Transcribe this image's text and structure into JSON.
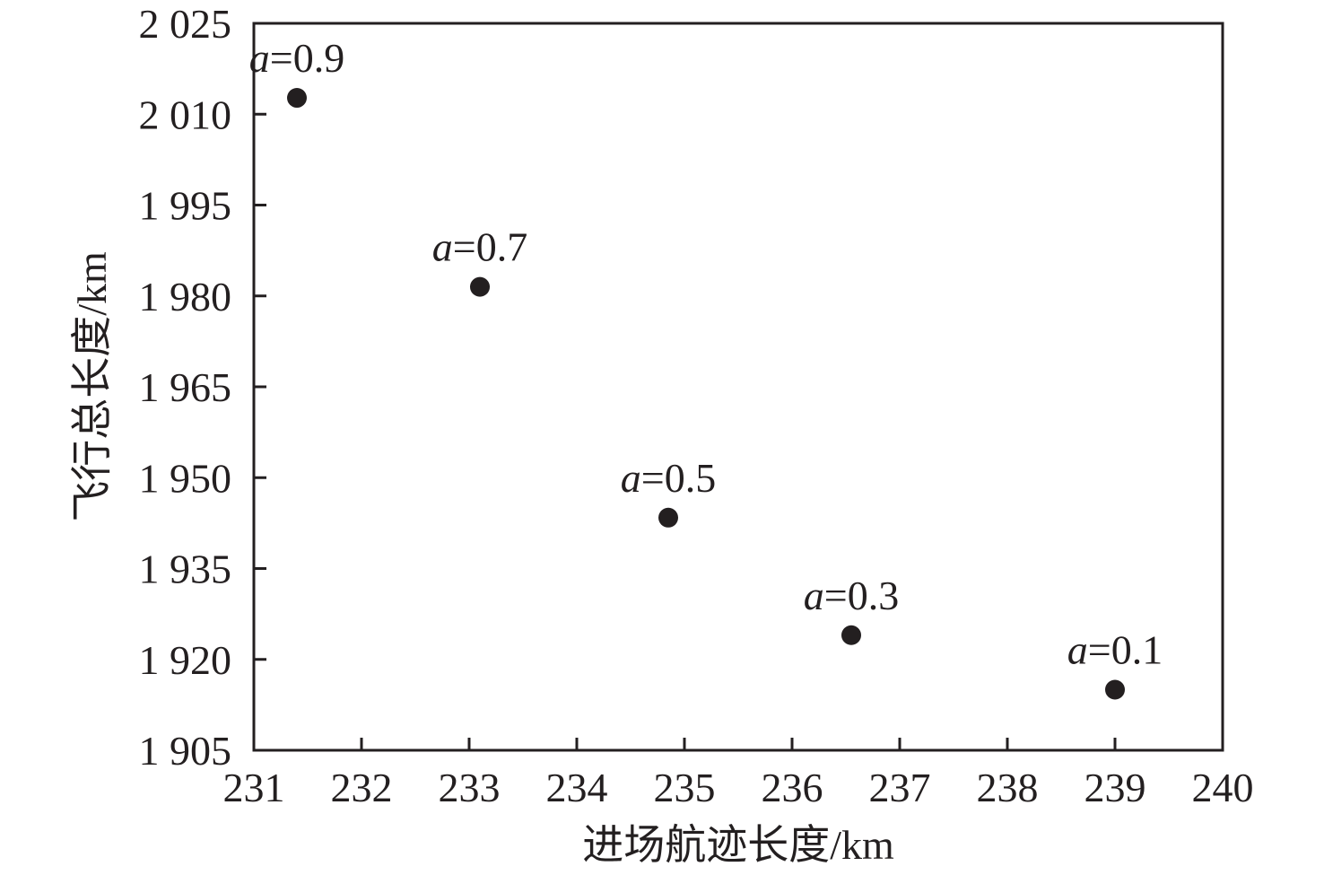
{
  "chart_data": {
    "type": "scatter",
    "title": "",
    "xlabel": "进场航迹长度/km",
    "ylabel": "飞行总长度/km",
    "xlim": [
      231,
      240
    ],
    "ylim": [
      1905,
      2025
    ],
    "xticks": [
      231,
      232,
      233,
      234,
      235,
      236,
      237,
      238,
      239,
      240
    ],
    "xtick_labels": [
      "231",
      "232",
      "233",
      "234",
      "235",
      "236",
      "237",
      "238",
      "239",
      "240"
    ],
    "yticks": [
      1905,
      1920,
      1935,
      1950,
      1965,
      1980,
      1995,
      2010,
      2025
    ],
    "ytick_labels": [
      "1 905",
      "1 920",
      "1 935",
      "1 950",
      "1 965",
      "1 980",
      "1 995",
      "2 010",
      "2 025"
    ],
    "grid": false,
    "points": [
      {
        "label_var": "a",
        "label_val": "=0.9",
        "x": 231.4,
        "y": 2012.7
      },
      {
        "label_var": "a",
        "label_val": "=0.7",
        "x": 233.1,
        "y": 1981.5
      },
      {
        "label_var": "a",
        "label_val": "=0.5",
        "x": 234.85,
        "y": 1943.4
      },
      {
        "label_var": "a",
        "label_val": "=0.3",
        "x": 236.55,
        "y": 1924.0
      },
      {
        "label_var": "a",
        "label_val": "=0.1",
        "x": 239.0,
        "y": 1915.0
      }
    ],
    "marker_color": "#231f20",
    "axis_color": "#231f20"
  }
}
